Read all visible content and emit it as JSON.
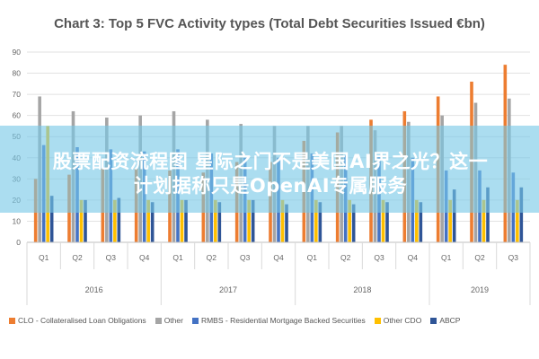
{
  "chart_data": {
    "type": "bar",
    "title": "Chart 3: Top 5 FVC Activity types (Total Debt Securities Issued €bn)",
    "ylim": [
      0,
      90
    ],
    "yticks": [
      0,
      10,
      20,
      30,
      40,
      50,
      60,
      70,
      80,
      90
    ],
    "grid": true,
    "legend_position": "bottom",
    "categories": [
      "Q1",
      "Q2",
      "Q3",
      "Q4",
      "Q1",
      "Q2",
      "Q3",
      "Q4",
      "Q1",
      "Q2",
      "Q3",
      "Q4",
      "Q1",
      "Q2",
      "Q3"
    ],
    "groups": [
      {
        "label": "2016",
        "count": 4
      },
      {
        "label": "2017",
        "count": 4
      },
      {
        "label": "2018",
        "count": 4
      },
      {
        "label": "2019",
        "count": 3
      }
    ],
    "series": [
      {
        "name": "CLO - Collateralised Loan Obligations",
        "color": "#ED7D31",
        "values": [
          30,
          32,
          35,
          35,
          34,
          33,
          38,
          38,
          48,
          52,
          58,
          62,
          69,
          76,
          84
        ]
      },
      {
        "name": "Other",
        "color": "#A5A5A5",
        "values": [
          69,
          62,
          59,
          60,
          62,
          58,
          56,
          55,
          55,
          55,
          53,
          57,
          60,
          66,
          68
        ]
      },
      {
        "name": "RMBS - Residential Mortgage Backed Securities",
        "color": "#4472C4",
        "values": [
          46,
          45,
          44,
          43,
          44,
          42,
          40,
          40,
          42,
          41,
          41,
          40,
          34,
          34,
          33
        ]
      },
      {
        "name": "Other CDO",
        "color": "#FFC000",
        "values": [
          55,
          20,
          20,
          20,
          20,
          20,
          20,
          20,
          20,
          20,
          20,
          20,
          20,
          20,
          20
        ]
      },
      {
        "name": "ABCP",
        "color": "#2F5597",
        "values": [
          22,
          20,
          21,
          19,
          20,
          19,
          20,
          18,
          19,
          18,
          19,
          19,
          25,
          26,
          26
        ]
      }
    ]
  },
  "overlay": {
    "line1": "股票配资流程图 星际之门不是美国AI界之光？这一",
    "line2": "计划据称只是OpenAI专属服务"
  }
}
